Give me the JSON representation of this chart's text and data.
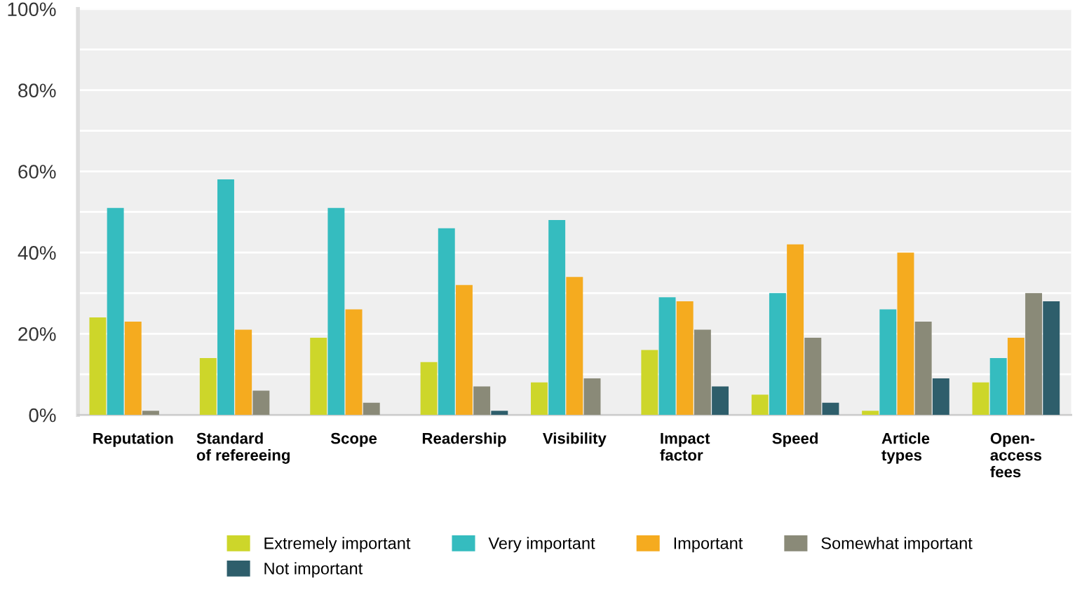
{
  "chart_data": {
    "type": "bar",
    "categories": [
      "Reputation",
      "Standard\nof refereeing",
      "Scope",
      "Readership",
      "Visibility",
      "Impact\nfactor",
      "Speed",
      "Article\ntypes",
      "Open-\naccess\nfees"
    ],
    "series": [
      {
        "name": "Extremely important",
        "color": "#cdd62a",
        "values": [
          24,
          14,
          19,
          13,
          8,
          16,
          5,
          1,
          8
        ]
      },
      {
        "name": "Very important",
        "color": "#35bcbf",
        "values": [
          51,
          58,
          51,
          46,
          48,
          29,
          30,
          26,
          14
        ]
      },
      {
        "name": "Important",
        "color": "#f5ab1f",
        "values": [
          23,
          21,
          26,
          32,
          34,
          28,
          42,
          40,
          19
        ]
      },
      {
        "name": "Somewhat important",
        "color": "#8a8a78",
        "values": [
          1,
          6,
          3,
          7,
          9,
          21,
          19,
          23,
          30
        ]
      },
      {
        "name": "Not important",
        "color": "#2e5e6b",
        "values": [
          null,
          null,
          null,
          1,
          null,
          7,
          3,
          9,
          28
        ]
      }
    ],
    "ylim": [
      0,
      100
    ],
    "yticks": [
      {
        "value": 0,
        "label": "0%"
      },
      {
        "value": 10,
        "label": null
      },
      {
        "value": 20,
        "label": "20%"
      },
      {
        "value": 30,
        "label": null
      },
      {
        "value": 40,
        "label": "40%"
      },
      {
        "value": 50,
        "label": null
      },
      {
        "value": 60,
        "label": "60%"
      },
      {
        "value": 70,
        "label": null
      },
      {
        "value": 80,
        "label": "80%"
      },
      {
        "value": 90,
        "label": null
      },
      {
        "value": 100,
        "label": "100%"
      }
    ],
    "grid": "y",
    "legend": "bottom"
  }
}
